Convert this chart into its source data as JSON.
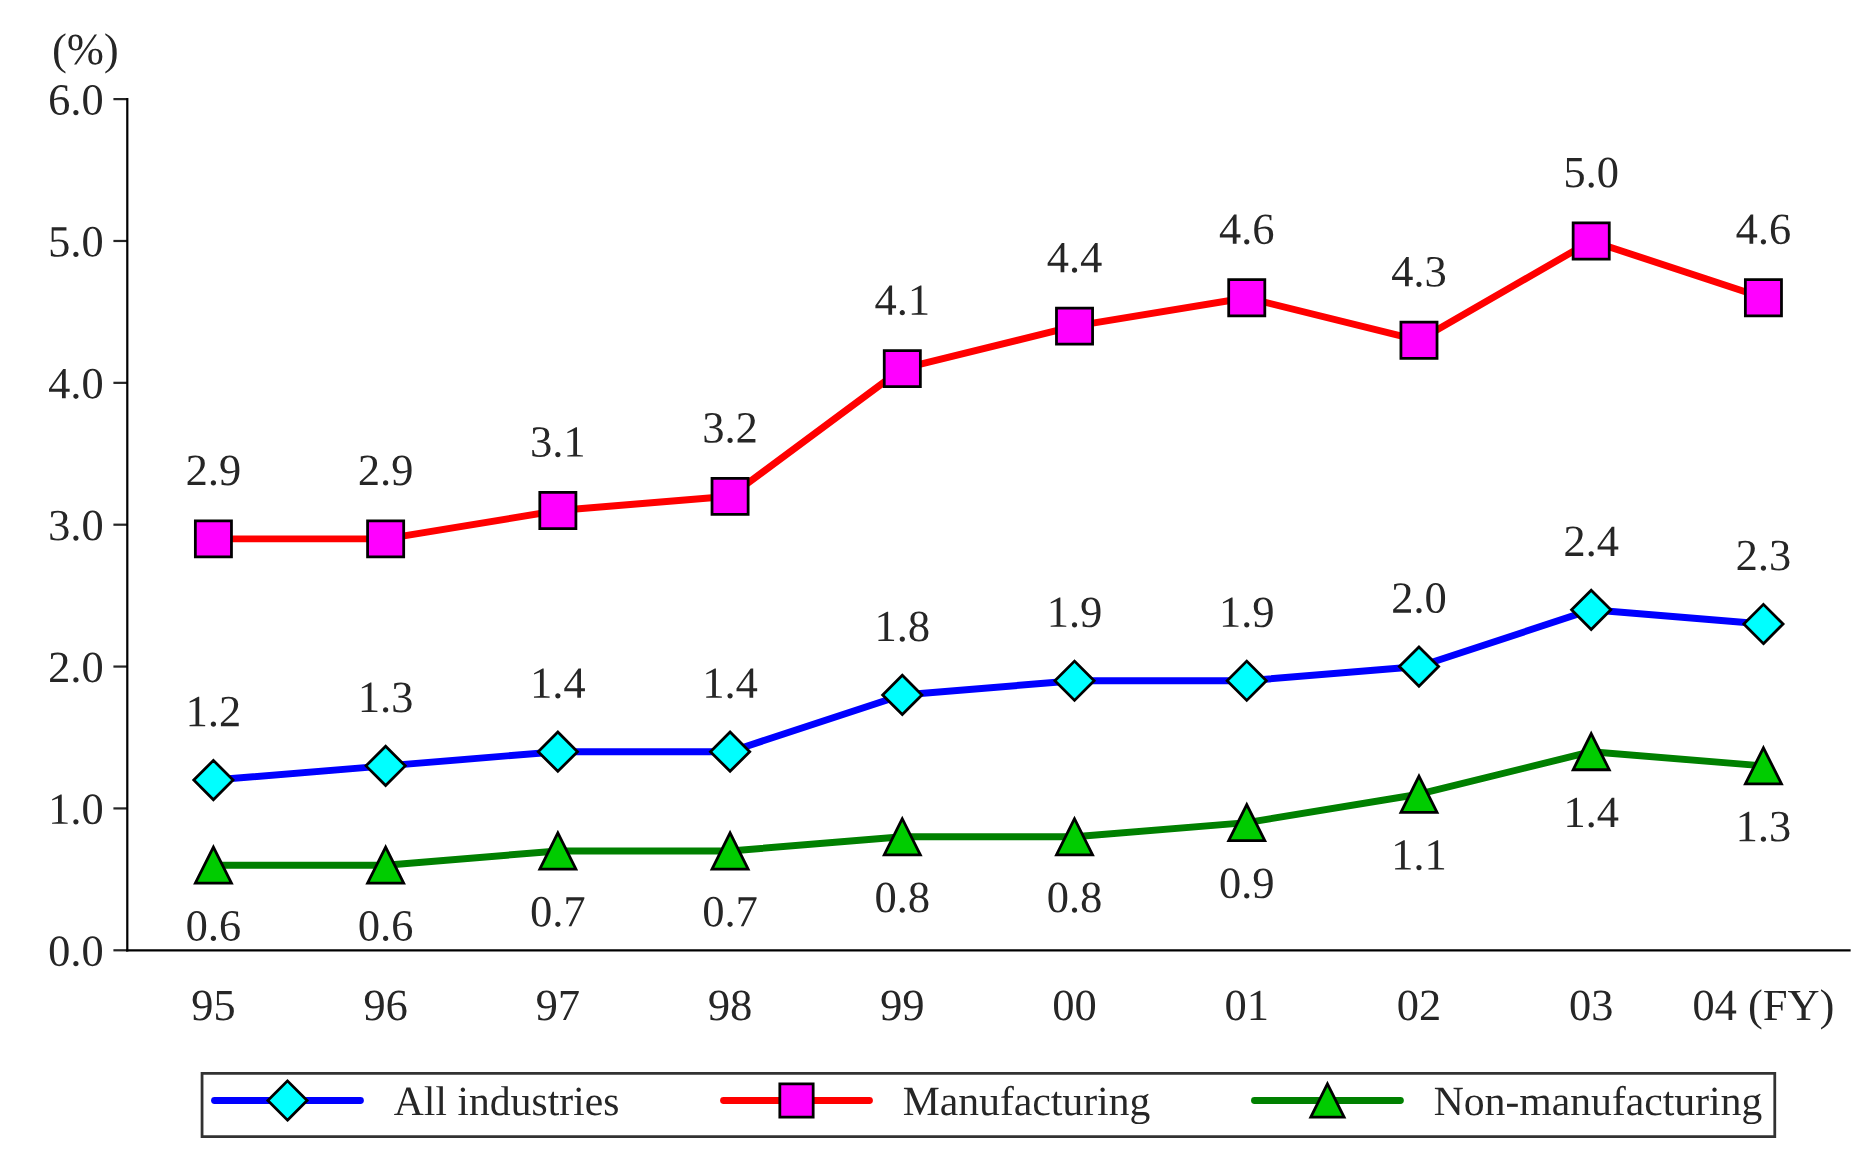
{
  "chart_data": {
    "type": "line",
    "ylabel": "(%)",
    "categories": [
      "95",
      "96",
      "97",
      "98",
      "99",
      "00",
      "01",
      "02",
      "03",
      "04 (FY)"
    ],
    "series": [
      {
        "name": "All industries",
        "color": "#0000ff",
        "colors": [
          "#00ffff",
          "#00ffff",
          "#00ffff",
          "#00ffff",
          "#00ffff",
          "#00ffff",
          "#00ffff",
          "#00ffff",
          "#00ffff",
          "#00ffff"
        ],
        "marker": "diamond",
        "values": [
          1.2,
          1.3,
          1.4,
          1.4,
          1.8,
          1.9,
          1.9,
          2.0,
          2.4,
          2.3
        ],
        "value_labels": [
          "1.2",
          "1.3",
          "1.4",
          "1.4",
          "1.8",
          "1.9",
          "1.9",
          "2.0",
          "2.4",
          "2.3"
        ]
      },
      {
        "name": "Manufacturing",
        "color": "#ff0000",
        "colors": [
          "#ff00ff",
          "#ff00ff",
          "#ff00ff",
          "#ff00ff",
          "#ff00ff",
          "#ff00ff",
          "#ff00ff",
          "#ff00ff",
          "#ff00ff",
          "#ff00ff"
        ],
        "marker": "square",
        "values": [
          2.9,
          2.9,
          3.1,
          3.2,
          4.1,
          4.4,
          4.6,
          4.3,
          5.0,
          4.6
        ],
        "value_labels": [
          "2.9",
          "2.9",
          "3.1",
          "3.2",
          "4.1",
          "4.4",
          "4.6",
          "4.3",
          "5.0",
          "4.6"
        ]
      },
      {
        "name": "Non-manufacturing",
        "color": "#008000",
        "colors": [
          "#00cc00",
          "#00cc00",
          "#00cc00",
          "#00cc00",
          "#00cc00",
          "#00cc00",
          "#00cc00",
          "#00cc00",
          "#00cc00",
          "#00cc00"
        ],
        "marker": "triangle",
        "values": [
          0.6,
          0.6,
          0.7,
          0.7,
          0.8,
          0.8,
          0.9,
          1.1,
          1.4,
          1.3
        ],
        "value_labels": [
          "0.6",
          "0.6",
          "0.7",
          "0.7",
          "0.8",
          "0.8",
          "0.9",
          "1.1",
          "1.4",
          "1.3"
        ]
      }
    ],
    "ylim": [
      0,
      6
    ],
    "yticks": [
      {
        "value": 0,
        "label": "0.0"
      },
      {
        "value": 1,
        "label": "1.0"
      },
      {
        "value": 2,
        "label": "2.0"
      },
      {
        "value": 3,
        "label": "3.0"
      },
      {
        "value": 4,
        "label": "4.0"
      },
      {
        "value": 5,
        "label": "5.0"
      },
      {
        "value": 6,
        "label": "6.0"
      }
    ],
    "grid": false,
    "legend": "bottom"
  }
}
